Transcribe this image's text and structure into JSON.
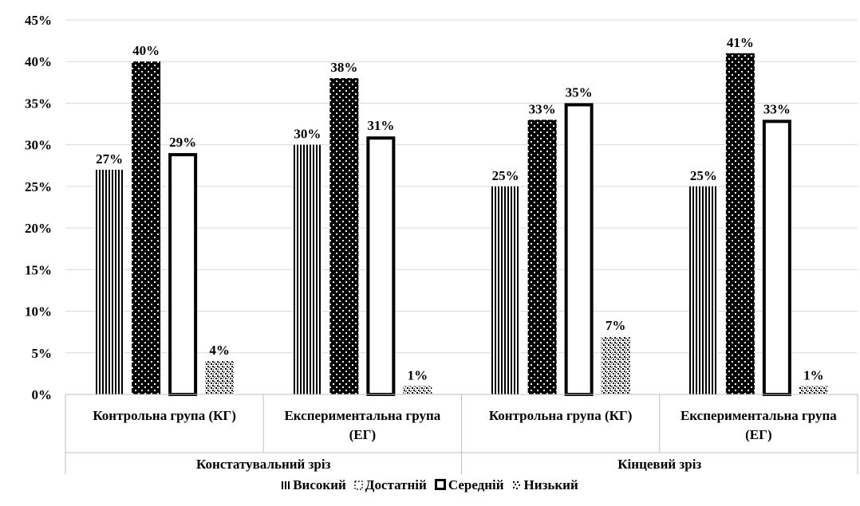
{
  "chart_data": {
    "type": "bar",
    "ylim": [
      0,
      45
    ],
    "y_ticks": [
      "0%",
      "5%",
      "10%",
      "15%",
      "20%",
      "25%",
      "30%",
      "35%",
      "40%",
      "45%"
    ],
    "categories": [
      "Контрольна група (КГ)",
      "Експериментальна група (ЕГ)",
      "Контрольна група (КГ)",
      "Експериментальна група (ЕГ)"
    ],
    "category_lines": [
      [
        "Контрольна група (КГ)"
      ],
      [
        "Експериментальна група",
        "(ЕГ)"
      ],
      [
        "Контрольна група (КГ)"
      ],
      [
        "Експериментальна група",
        "(ЕГ)"
      ]
    ],
    "groups": [
      {
        "label": "Констатувальний зріз",
        "categories": [
          0,
          1
        ]
      },
      {
        "label": "Кінцевий зріз",
        "categories": [
          2,
          3
        ]
      }
    ],
    "series": [
      {
        "name": "Високий",
        "pattern": "vertical-lines",
        "values": [
          27,
          30,
          25,
          25
        ],
        "labels": [
          "27%",
          "30%",
          "25%",
          "25%"
        ]
      },
      {
        "name": "Достатній",
        "pattern": "checker",
        "values": [
          40,
          38,
          33,
          41
        ],
        "labels": [
          "40%",
          "38%",
          "33%",
          "41%"
        ]
      },
      {
        "name": "Середній",
        "pattern": "hollow-outline",
        "values": [
          29,
          31,
          35,
          33
        ],
        "labels": [
          "29%",
          "31%",
          "35%",
          "33%"
        ]
      },
      {
        "name": "Низький",
        "pattern": "dots",
        "values": [
          4,
          1,
          7,
          1
        ],
        "labels": [
          "4%",
          "1%",
          "7%",
          "1%"
        ]
      }
    ],
    "grid": true,
    "legend_position": "bottom"
  }
}
